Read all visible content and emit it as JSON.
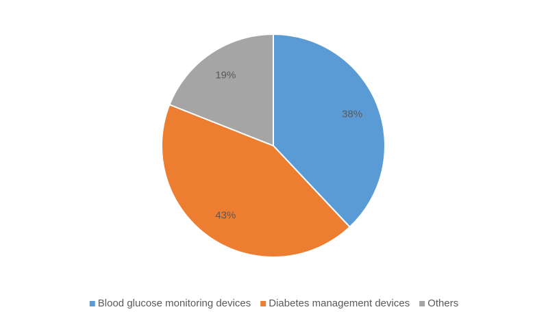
{
  "chart_data": {
    "type": "pie",
    "categories": [
      "Blood glucose monitoring devices",
      "Diabetes management devices",
      "Others"
    ],
    "values": [
      38,
      43,
      19
    ],
    "value_labels": [
      "38%",
      "43%",
      "19%"
    ],
    "colors": [
      "#5b9bd5",
      "#ed7d31",
      "#a5a5a5"
    ],
    "legend": "bottom"
  }
}
